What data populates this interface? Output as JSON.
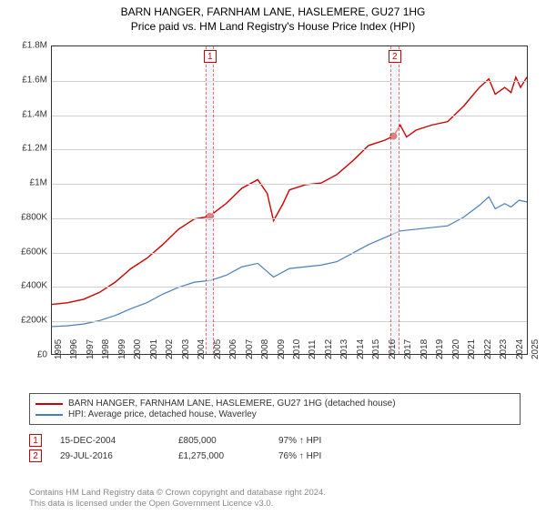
{
  "title": "BARN HANGER, FARNHAM LANE, HASLEMERE, GU27 1HG",
  "subtitle": "Price paid vs. HM Land Registry's House Price Index (HPI)",
  "chart": {
    "type": "line",
    "x_axis": {
      "min": 1995,
      "max": 2025,
      "tick_step": 1
    },
    "y_axis": {
      "min": 0,
      "max": 1800000,
      "tick_step": 200000,
      "tick_labels": [
        "£0",
        "£200K",
        "£400K",
        "£600K",
        "£800K",
        "£1M",
        "£1.2M",
        "£1.4M",
        "£1.6M",
        "£1.8M"
      ]
    },
    "grid_color": "#d0d0d0",
    "border_color": "#333333",
    "background_color": "#ffffff",
    "label_fontsize": 10,
    "series": [
      {
        "id": "property",
        "label": "BARN HANGER, FARNHAM LANE, HASLEMERE, GU27 1HG (detached house)",
        "color": "#cc0000",
        "line_width": 1.4,
        "data": [
          [
            1995,
            290000
          ],
          [
            1996,
            300000
          ],
          [
            1997,
            320000
          ],
          [
            1998,
            360000
          ],
          [
            1999,
            420000
          ],
          [
            2000,
            500000
          ],
          [
            2001,
            560000
          ],
          [
            2002,
            640000
          ],
          [
            2003,
            730000
          ],
          [
            2004,
            790000
          ],
          [
            2004.96,
            805000
          ],
          [
            2005,
            810000
          ],
          [
            2006,
            880000
          ],
          [
            2007,
            970000
          ],
          [
            2008,
            1020000
          ],
          [
            2008.6,
            940000
          ],
          [
            2009,
            780000
          ],
          [
            2009.6,
            880000
          ],
          [
            2010,
            960000
          ],
          [
            2011,
            990000
          ],
          [
            2012,
            1000000
          ],
          [
            2013,
            1050000
          ],
          [
            2014,
            1130000
          ],
          [
            2015,
            1220000
          ],
          [
            2016,
            1250000
          ],
          [
            2016.58,
            1275000
          ],
          [
            2017,
            1340000
          ],
          [
            2017.4,
            1270000
          ],
          [
            2018,
            1310000
          ],
          [
            2019,
            1340000
          ],
          [
            2020,
            1360000
          ],
          [
            2021,
            1450000
          ],
          [
            2022,
            1560000
          ],
          [
            2022.6,
            1610000
          ],
          [
            2023,
            1520000
          ],
          [
            2023.6,
            1560000
          ],
          [
            2024,
            1530000
          ],
          [
            2024.3,
            1620000
          ],
          [
            2024.6,
            1560000
          ],
          [
            2025,
            1620000
          ]
        ]
      },
      {
        "id": "hpi",
        "label": "HPI: Average price, detached house, Waverley",
        "color": "#4a7ebb",
        "line_width": 1.2,
        "data": [
          [
            1995,
            160000
          ],
          [
            1996,
            165000
          ],
          [
            1997,
            175000
          ],
          [
            1998,
            195000
          ],
          [
            1999,
            225000
          ],
          [
            2000,
            265000
          ],
          [
            2001,
            300000
          ],
          [
            2002,
            350000
          ],
          [
            2003,
            390000
          ],
          [
            2004,
            420000
          ],
          [
            2005,
            430000
          ],
          [
            2006,
            460000
          ],
          [
            2007,
            510000
          ],
          [
            2008,
            530000
          ],
          [
            2009,
            450000
          ],
          [
            2010,
            500000
          ],
          [
            2011,
            510000
          ],
          [
            2012,
            520000
          ],
          [
            2013,
            540000
          ],
          [
            2014,
            590000
          ],
          [
            2015,
            640000
          ],
          [
            2016,
            680000
          ],
          [
            2017,
            720000
          ],
          [
            2018,
            730000
          ],
          [
            2019,
            740000
          ],
          [
            2020,
            750000
          ],
          [
            2021,
            800000
          ],
          [
            2022,
            870000
          ],
          [
            2022.6,
            920000
          ],
          [
            2023,
            850000
          ],
          [
            2023.6,
            880000
          ],
          [
            2024,
            860000
          ],
          [
            2024.5,
            900000
          ],
          [
            2025,
            890000
          ]
        ]
      }
    ],
    "event_bands": [
      {
        "marker": "1",
        "x_start": 2004.7,
        "x_end": 2005.2,
        "band_color": "#e8edf5",
        "border_color": "#cc0000"
      },
      {
        "marker": "2",
        "x_start": 2016.3,
        "x_end": 2016.85,
        "band_color": "#e8edf5",
        "border_color": "#cc0000"
      }
    ],
    "sale_points": [
      {
        "x": 2004.96,
        "y": 805000,
        "color": "#cc0000",
        "radius": 4
      },
      {
        "x": 2016.58,
        "y": 1275000,
        "color": "#cc0000",
        "radius": 4
      }
    ]
  },
  "legend": {
    "border_color": "#555555",
    "fontsize": 10
  },
  "events": [
    {
      "marker": "1",
      "date": "15-DEC-2004",
      "price": "£805,000",
      "pct": "97%",
      "arrow": "↑",
      "suffix": "HPI"
    },
    {
      "marker": "2",
      "date": "29-JUL-2016",
      "price": "£1,275,000",
      "pct": "76%",
      "arrow": "↑",
      "suffix": "HPI"
    }
  ],
  "footer": {
    "line1": "Contains HM Land Registry data © Crown copyright and database right 2024.",
    "line2": "This data is licensed under the Open Government Licence v3.0.",
    "color": "#888888",
    "fontsize": 9.5
  }
}
